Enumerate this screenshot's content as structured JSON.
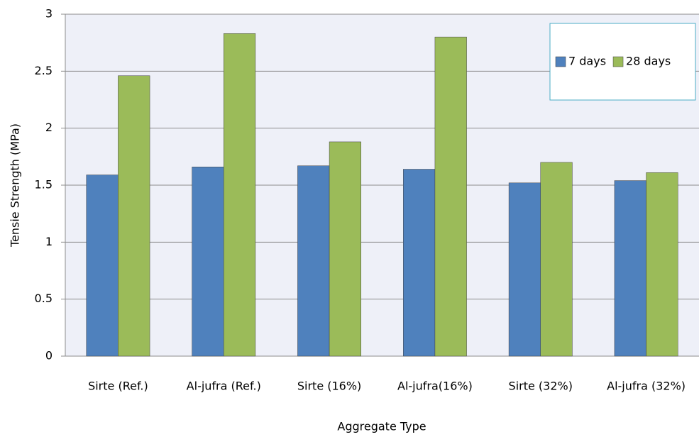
{
  "chart_data": {
    "type": "bar",
    "categories": [
      "Sirte (Ref.)",
      "Al-jufra (Ref.)",
      "Sirte (16%)",
      "Al-jufra(16%)",
      "Sirte (32%)",
      "Al-jufra (32%)"
    ],
    "series": [
      {
        "name": "7 days",
        "color": "#4f81bd",
        "values": [
          1.59,
          1.66,
          1.67,
          1.64,
          1.52,
          1.54
        ]
      },
      {
        "name": "28 days",
        "color": "#9bbb59",
        "values": [
          2.46,
          2.83,
          1.88,
          2.8,
          1.7,
          1.61
        ]
      }
    ],
    "y_label": "Tensie Strength (MPa)",
    "x_label": "Aggregate Type",
    "ylim": [
      0,
      3
    ],
    "yticks": [
      0,
      0.5,
      1,
      1.5,
      2,
      2.5,
      3
    ],
    "grid": true,
    "legend": "top-right"
  }
}
